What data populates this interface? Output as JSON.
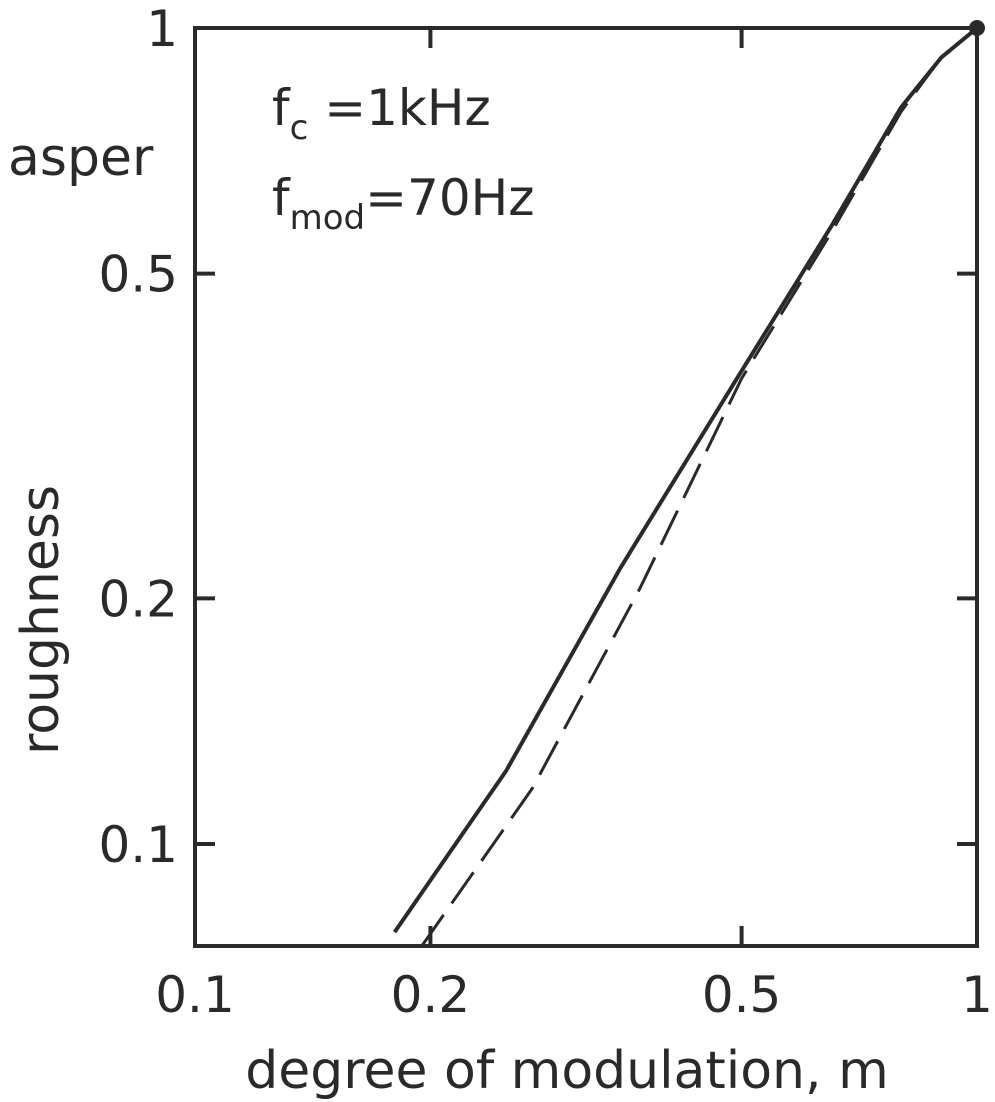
{
  "chart_data": {
    "type": "line",
    "xscale": "log",
    "yscale": "log",
    "xlim": [
      0.1,
      1
    ],
    "ylim": [
      0.075,
      1
    ],
    "xticks": [
      {
        "value": 0.1,
        "label": "0.1"
      },
      {
        "value": 0.2,
        "label": "0.2"
      },
      {
        "value": 0.5,
        "label": "0.5"
      },
      {
        "value": 1,
        "label": "1"
      }
    ],
    "yticks": [
      {
        "value": 0.1,
        "label": "0.1"
      },
      {
        "value": 0.2,
        "label": "0.2"
      },
      {
        "value": 0.5,
        "label": "0.5"
      },
      {
        "value": 1,
        "label": "1"
      }
    ],
    "xlabel": "degree of modulation, m",
    "ylabel": "roughness",
    "ylabel_top": "asper",
    "annotations": [
      {
        "main": "f",
        "sub": "c",
        "rest": " =1kHz"
      },
      {
        "main": "f",
        "sub": "mod",
        "rest": "=70Hz"
      }
    ],
    "grid": false,
    "series": [
      {
        "style": "solid",
        "x": [
          0.18,
          0.25,
          0.35,
          0.5,
          0.65,
          0.8,
          0.9,
          1.0
        ],
        "y": [
          0.078,
          0.123,
          0.218,
          0.38,
          0.57,
          0.8,
          0.92,
          1.0
        ]
      },
      {
        "style": "dashed",
        "x": [
          0.195,
          0.27,
          0.37,
          0.5,
          0.65,
          0.8,
          0.9,
          1.0
        ],
        "y": [
          0.075,
          0.117,
          0.205,
          0.372,
          0.56,
          0.79,
          0.92,
          1.0
        ]
      }
    ],
    "end_marker": {
      "x": 1.0,
      "y": 1.0
    }
  }
}
